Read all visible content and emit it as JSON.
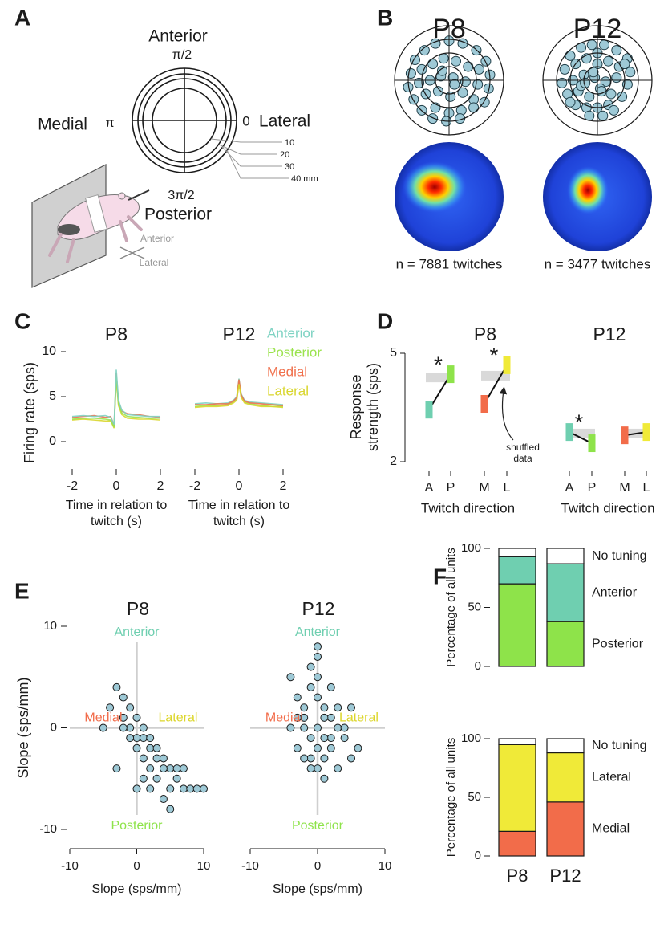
{
  "panel_labels": [
    "A",
    "B",
    "C",
    "D",
    "E",
    "F"
  ],
  "diagram": {
    "anterior": "Anterior",
    "posterior": "Posterior",
    "medial": "Medial",
    "lateral": "Lateral",
    "angle_top": "π/2",
    "angle_left": "π",
    "angle_right": "0",
    "angle_bottom": "3π/2",
    "radius_labels": [
      "10",
      "20",
      "30",
      "40 mm"
    ],
    "pup_anterior": "Anterior",
    "pup_lateral": "Lateral"
  },
  "chart_data": [
    {
      "type": "polar_scatter",
      "title": "P8",
      "rlim": [
        0,
        40
      ],
      "rings": [
        10,
        20,
        30,
        40
      ],
      "color": "#9ec9d6",
      "x": [
        -25,
        -18,
        -10,
        0,
        10,
        20,
        27,
        -28,
        -20,
        -12,
        -4,
        5,
        14,
        22,
        30,
        -30,
        -22,
        -14,
        -6,
        3,
        12,
        21,
        29,
        -26,
        -17,
        -8,
        1,
        10,
        18,
        26,
        -20,
        -10,
        0,
        9,
        18,
        -12,
        -2,
        8,
        -5,
        4
      ],
      "y": [
        15,
        22,
        27,
        29,
        27,
        22,
        14,
        5,
        8,
        12,
        16,
        14,
        10,
        8,
        4,
        -5,
        -2,
        0,
        3,
        2,
        -1,
        -3,
        -6,
        -14,
        -10,
        -8,
        -12,
        -9,
        -14,
        -16,
        -22,
        -20,
        -24,
        -22,
        -20,
        -28,
        -30,
        -28,
        7,
        -3
      ],
      "caption": "n = 7881 twitches"
    },
    {
      "type": "polar_scatter",
      "title": "P12",
      "rlim": [
        0,
        40
      ],
      "rings": [
        10,
        20,
        30,
        40
      ],
      "color": "#9ec9d6",
      "x": [
        -20,
        -12,
        -4,
        5,
        14,
        22,
        -24,
        -16,
        -8,
        0,
        8,
        16,
        24,
        -26,
        -18,
        -10,
        -2,
        6,
        14,
        22,
        -22,
        -14,
        -6,
        2,
        10,
        18,
        -16,
        -8,
        0,
        8,
        -6,
        4,
        -12,
        12,
        -3,
        3,
        -20,
        20,
        0,
        -9
      ],
      "y": [
        18,
        24,
        26,
        26,
        22,
        16,
        8,
        12,
        16,
        12,
        14,
        10,
        6,
        -2,
        0,
        4,
        2,
        -1,
        2,
        -3,
        -10,
        -8,
        -12,
        -6,
        -10,
        -12,
        -18,
        -20,
        -20,
        -18,
        -26,
        -26,
        -4,
        -22,
        6,
        -8,
        -16,
        12,
        20,
        -2
      ],
      "caption": "n = 3477 twitches"
    },
    {
      "type": "line",
      "title": "P8",
      "y_label": "Firing rate (sps)",
      "x_label": "Time in relation to twitch (s)",
      "x": [
        -2,
        -1.5,
        -1,
        -0.5,
        -0.25,
        -0.1,
        0,
        0.1,
        0.25,
        0.5,
        1,
        1.5,
        2
      ],
      "xlim": [
        -2,
        2
      ],
      "xticks": [
        -2,
        0,
        2
      ],
      "ylim": [
        0,
        10
      ],
      "yticks": [
        0,
        5,
        10
      ],
      "series": [
        {
          "color": "#d9d62e",
          "values": [
            2.4,
            2.5,
            2.4,
            2.3,
            2.3,
            1.5,
            6.9,
            4.0,
            3.0,
            2.6,
            2.5,
            2.5,
            2.4
          ]
        },
        {
          "color": "#f0704c",
          "values": [
            2.7,
            2.8,
            2.9,
            2.7,
            2.8,
            1.8,
            7.6,
            4.4,
            3.4,
            3.1,
            3.0,
            2.8,
            2.7
          ]
        },
        {
          "color": "#9be34e",
          "values": [
            2.5,
            2.6,
            2.6,
            2.5,
            2.4,
            1.6,
            7.2,
            4.2,
            3.2,
            2.8,
            2.7,
            2.6,
            2.6
          ]
        },
        {
          "color": "#7fd3c3",
          "values": [
            2.8,
            2.9,
            2.8,
            2.9,
            2.7,
            1.9,
            8.0,
            4.6,
            3.5,
            3.0,
            2.9,
            2.8,
            2.8
          ]
        }
      ]
    },
    {
      "type": "line",
      "title": "P12",
      "x_label": "Time in relation to twitch (s)",
      "x": [
        -2,
        -1.5,
        -1,
        -0.5,
        -0.25,
        -0.1,
        0,
        0.1,
        0.25,
        0.5,
        1,
        1.5,
        2
      ],
      "xlim": [
        -2,
        2
      ],
      "xticks": [
        -2,
        0,
        2
      ],
      "ylim": [
        0,
        10
      ],
      "legend": "upper-right",
      "series": [
        {
          "name": "Anterior",
          "color": "#7fd3c3",
          "values": [
            4.2,
            4.3,
            4.2,
            4.3,
            4.6,
            5.0,
            7.0,
            5.3,
            4.6,
            4.4,
            4.3,
            4.2,
            4.1
          ]
        },
        {
          "name": "Posterior",
          "color": "#9be34e",
          "values": [
            3.9,
            4.0,
            4.0,
            4.1,
            4.4,
            4.7,
            6.6,
            5.0,
            4.4,
            4.2,
            4.0,
            3.9,
            3.9
          ]
        },
        {
          "name": "Medial",
          "color": "#f0704c",
          "values": [
            4.1,
            4.1,
            4.2,
            4.2,
            4.5,
            4.9,
            6.9,
            5.2,
            4.5,
            4.3,
            4.2,
            4.1,
            4.0
          ]
        },
        {
          "name": "Lateral",
          "color": "#d9d62e",
          "values": [
            3.8,
            3.9,
            3.9,
            4.0,
            4.3,
            4.6,
            6.4,
            4.9,
            4.3,
            4.1,
            3.9,
            3.9,
            3.8
          ]
        }
      ]
    },
    {
      "type": "paired_dot",
      "title": "P8",
      "y_label": "Response strength (sps)",
      "x_label": "Twitch direction",
      "categories": [
        "A",
        "P",
        "M",
        "L"
      ],
      "colors": [
        "#6fcfb0",
        "#8ee34a",
        "#f26c4a",
        "#f0ea38"
      ],
      "values": [
        3.44,
        4.42,
        3.6,
        4.67
      ],
      "shuffled": [
        4.33,
        4.38
      ],
      "ylim": [
        2,
        5
      ],
      "yticks": [
        2,
        5
      ],
      "annotations": [
        {
          "pair": 0,
          "text": "*"
        },
        {
          "pair": 1,
          "text": "*"
        }
      ],
      "note": "shuffled data"
    },
    {
      "type": "paired_dot",
      "title": "P12",
      "x_label": "Twitch direction",
      "categories": [
        "A",
        "P",
        "M",
        "L"
      ],
      "colors": [
        "#6fcfb0",
        "#8ee34a",
        "#f26c4a",
        "#f0ea38"
      ],
      "values": [
        2.82,
        2.51,
        2.73,
        2.82
      ],
      "shuffled": [
        2.78,
        2.78
      ],
      "ylim": [
        2,
        5
      ],
      "annotations": [
        {
          "pair": 0,
          "text": "*"
        }
      ]
    },
    {
      "type": "scatter",
      "title": "P8",
      "x_label": "Slope (sps/mm)",
      "y_label": "Slope (sps/mm)",
      "xlim": [
        -10,
        10
      ],
      "xticks": [
        -10,
        0,
        10
      ],
      "ylim": [
        -10,
        10
      ],
      "yticks": [
        -10,
        0,
        10
      ],
      "color": "#9ec9d6",
      "x": [
        -3,
        -2,
        -1,
        0,
        1,
        -4,
        -2,
        0,
        2,
        3,
        -1,
        1,
        2,
        4,
        5,
        3,
        6,
        7,
        8,
        9,
        10,
        4,
        5,
        2,
        0,
        -1,
        1,
        3,
        6,
        -2,
        -5,
        0,
        1,
        2,
        -3,
        4,
        7,
        5
      ],
      "y": [
        4,
        3,
        2,
        1,
        0,
        2,
        1,
        -1,
        -2,
        -3,
        0,
        -1,
        -1,
        -3,
        -4,
        -5,
        -5,
        -6,
        -6,
        -6,
        -6,
        -7,
        -8,
        -4,
        -2,
        -1,
        -3,
        -2,
        -4,
        0,
        0,
        -6,
        -5,
        -6,
        -4,
        -4,
        -4,
        -6
      ],
      "directions": [
        {
          "text": "Anterior",
          "color": "#6fcfb0",
          "side": "top"
        },
        {
          "text": "Posterior",
          "color": "#8ee34a",
          "side": "bottom"
        },
        {
          "text": "Medial",
          "color": "#f26c4a",
          "side": "left"
        },
        {
          "text": "Lateral",
          "color": "#dcd62a",
          "side": "right"
        }
      ]
    },
    {
      "type": "scatter",
      "title": "P12",
      "x_label": "Slope (sps/mm)",
      "xlim": [
        -10,
        10
      ],
      "xticks": [
        -10,
        0,
        10
      ],
      "ylim": [
        -10,
        10
      ],
      "color": "#9ec9d6",
      "x": [
        -4,
        -3,
        -2,
        -1,
        0,
        1,
        2,
        3,
        -2,
        -1,
        0,
        1,
        2,
        -3,
        -1,
        0,
        1,
        3,
        4,
        5,
        6,
        -2,
        0,
        2,
        -1,
        1,
        0,
        -4,
        3,
        -1,
        0,
        2,
        5,
        -3,
        1,
        0,
        -2,
        4
      ],
      "y": [
        5,
        3,
        2,
        4,
        3,
        2,
        1,
        0,
        0,
        -1,
        -2,
        1,
        -1,
        -2,
        -3,
        -4,
        -3,
        2,
        -1,
        -3,
        -2,
        1,
        5,
        4,
        6,
        -5,
        8,
        0,
        -4,
        -4,
        0,
        -2,
        2,
        1,
        -1,
        7,
        -3,
        0
      ],
      "directions": [
        {
          "text": "Anterior",
          "color": "#6fcfb0",
          "side": "top"
        },
        {
          "text": "Posterior",
          "color": "#8ee34a",
          "side": "bottom"
        },
        {
          "text": "Medial",
          "color": "#f26c4a",
          "side": "left"
        },
        {
          "text": "Lateral",
          "color": "#dcd62a",
          "side": "right"
        }
      ]
    },
    {
      "type": "stacked_bar",
      "y_label": "Percentage of all units",
      "categories": [
        null,
        null
      ],
      "ylim": [
        0,
        100
      ],
      "yticks": [
        0,
        50,
        100
      ],
      "series": [
        {
          "name": "Posterior",
          "color": "#8ee34a",
          "values": [
            70,
            38
          ]
        },
        {
          "name": "Anterior",
          "color": "#6fcfb0",
          "values": [
            23,
            49
          ]
        },
        {
          "name": "No tuning",
          "color": "#ffffff",
          "values": [
            7,
            13
          ]
        }
      ]
    },
    {
      "type": "stacked_bar",
      "y_label": "Percentage of all units",
      "categories": [
        "P8",
        "P12"
      ],
      "ylim": [
        0,
        100
      ],
      "yticks": [
        0,
        50,
        100
      ],
      "series": [
        {
          "name": "Medial",
          "color": "#f26c4a",
          "values": [
            21,
            46
          ]
        },
        {
          "name": "Lateral",
          "color": "#f0ea38",
          "values": [
            74,
            42
          ]
        },
        {
          "name": "No tuning",
          "color": "#ffffff",
          "values": [
            5,
            12
          ]
        }
      ]
    }
  ]
}
